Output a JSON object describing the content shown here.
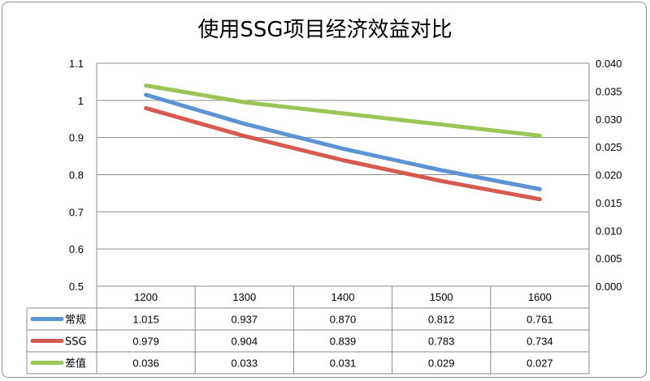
{
  "chart_data": {
    "type": "line",
    "title": "使用SSG项目经济效益对比",
    "categories": [
      "1200",
      "1300",
      "1400",
      "1500",
      "1600"
    ],
    "series": [
      {
        "name": "常规",
        "axis": "left",
        "color": "#5b93d3",
        "values": [
          1.015,
          0.937,
          0.87,
          0.812,
          0.761
        ],
        "labels": [
          "1.015",
          "0.937",
          "0.870",
          "0.812",
          "0.761"
        ]
      },
      {
        "name": "SSG",
        "axis": "left",
        "color": "#d65a50",
        "values": [
          0.979,
          0.904,
          0.839,
          0.783,
          0.734
        ],
        "labels": [
          "0.979",
          "0.904",
          "0.839",
          "0.783",
          "0.734"
        ]
      },
      {
        "name": "差值",
        "axis": "right",
        "color": "#9bc556",
        "values": [
          0.036,
          0.033,
          0.031,
          0.029,
          0.027
        ],
        "labels": [
          "0.036",
          "0.033",
          "0.031",
          "0.029",
          "0.027"
        ]
      }
    ],
    "y_left": {
      "min": 0.5,
      "max": 1.1,
      "step": 0.1,
      "tick_labels": [
        "0.5",
        "0.6",
        "0.7",
        "0.8",
        "0.9",
        "1",
        "1.1"
      ]
    },
    "y_right": {
      "min": 0.0,
      "max": 0.04,
      "step": 0.005,
      "tick_labels": [
        "0.000",
        "0.005",
        "0.010",
        "0.015",
        "0.020",
        "0.025",
        "0.030",
        "0.035",
        "0.040"
      ]
    },
    "grid": true,
    "legend": "data-table"
  }
}
